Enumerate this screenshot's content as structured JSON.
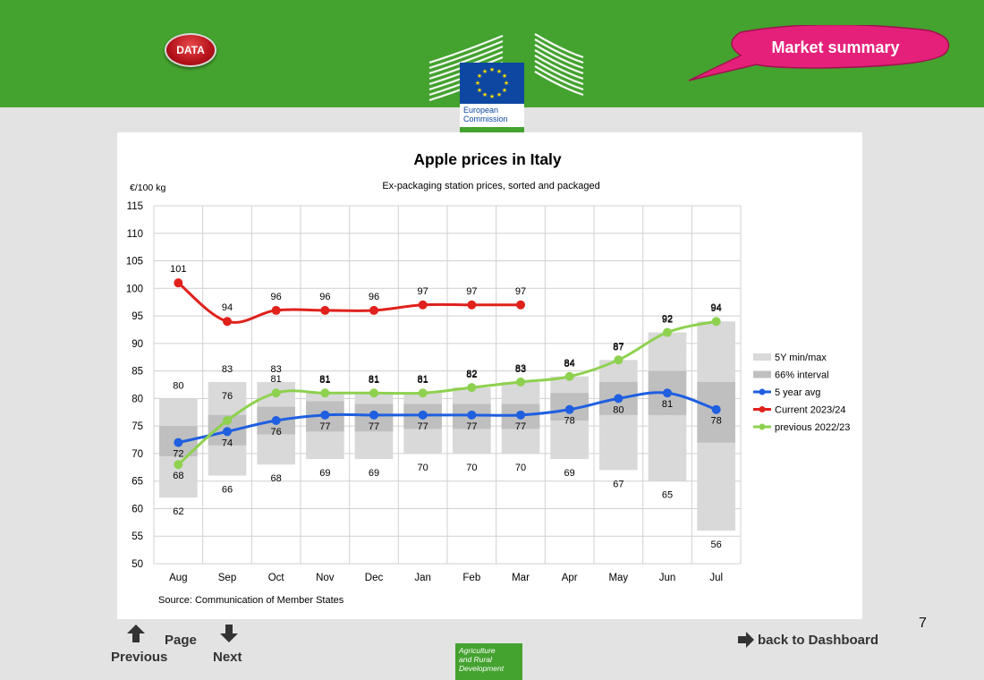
{
  "header": {
    "data_button": "DATA",
    "market_summary": "Market summary",
    "logo_text_line1": "European",
    "logo_text_line2": "Commission",
    "colors": {
      "green": "#44a22f",
      "eu_blue": "#0e47a1",
      "bubble": "#e5207a",
      "data_red": "#b5121b"
    }
  },
  "chart_data": {
    "type": "line",
    "title": "Apple prices in Italy",
    "subtitle": "Ex-packaging station prices, sorted and packaged",
    "ylabel": "€/100 kg",
    "source": "Source: Communication of Member States",
    "ylim": [
      50,
      115
    ],
    "yticks": [
      50,
      55,
      60,
      65,
      70,
      75,
      80,
      85,
      90,
      95,
      100,
      105,
      110,
      115
    ],
    "grid": true,
    "legend_position": "right",
    "categories": [
      "Aug",
      "Sep",
      "Oct",
      "Nov",
      "Dec",
      "Jan",
      "Feb",
      "Mar",
      "Apr",
      "May",
      "Jun",
      "Jul"
    ],
    "ranges": {
      "min_max_label": "5Y min/max",
      "min": [
        62,
        66,
        68,
        69,
        69,
        70,
        70,
        70,
        69,
        67,
        65,
        56
      ],
      "max": [
        80,
        83,
        83,
        81,
        81,
        81,
        82,
        83,
        84,
        87,
        92,
        94
      ],
      "interval_label": "66% interval",
      "interval_low": [
        69.5,
        71.5,
        73.5,
        74,
        74,
        74.5,
        74.5,
        74.5,
        76,
        77,
        77,
        72
      ],
      "interval_high": [
        75,
        77,
        78.5,
        79.5,
        79,
        79,
        79,
        79,
        81,
        83,
        85,
        83
      ],
      "color_minmax": "#d9d9d9",
      "color_interval": "#bfbfbf"
    },
    "series": [
      {
        "name": "5 year avg",
        "color": "#1f5fe0",
        "values": [
          72,
          74,
          76,
          77,
          77,
          77,
          77,
          77,
          78,
          80,
          81,
          78
        ]
      },
      {
        "name": "Current 2023/24",
        "color": "#e0211c",
        "values": [
          101,
          94,
          96,
          96,
          96,
          97,
          97,
          97,
          null,
          null,
          null,
          null
        ]
      },
      {
        "name": "previous 2022/23",
        "color": "#8ed14f",
        "values": [
          68,
          76,
          81,
          81,
          81,
          81,
          82,
          83,
          84,
          87,
          92,
          94
        ]
      }
    ]
  },
  "footer": {
    "page_number": "7",
    "page_label": "Page",
    "previous_label": "Previous",
    "next_label": "Next",
    "agri_line1": "Agriculture",
    "agri_line2": "and Rural",
    "agri_line3": "Development",
    "dashboard_label": "back to Dashboard"
  }
}
